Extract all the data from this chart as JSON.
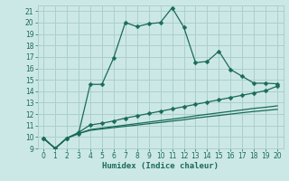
{
  "xlabel": "Humidex (Indice chaleur)",
  "bg_color": "#cce8e6",
  "grid_color": "#aacfcd",
  "line_color": "#1a6b5a",
  "xlim": [
    -0.5,
    20.5
  ],
  "ylim": [
    9,
    21.5
  ],
  "xticks": [
    0,
    1,
    2,
    3,
    4,
    5,
    6,
    7,
    8,
    9,
    10,
    11,
    12,
    13,
    14,
    15,
    16,
    17,
    18,
    19,
    20
  ],
  "yticks": [
    9,
    10,
    11,
    12,
    13,
    14,
    15,
    16,
    17,
    18,
    19,
    20,
    21
  ],
  "line1_x": [
    0,
    1,
    2,
    3,
    4,
    5,
    6,
    7,
    8,
    9,
    10,
    11,
    12,
    13,
    14,
    15,
    16,
    17,
    18,
    19,
    20
  ],
  "line1_y": [
    9.9,
    9.0,
    9.9,
    10.3,
    14.6,
    14.6,
    16.9,
    20.0,
    19.65,
    19.9,
    20.0,
    21.3,
    19.6,
    16.5,
    16.6,
    17.5,
    15.9,
    15.3,
    14.7,
    14.7,
    14.65
  ],
  "line2_x": [
    0,
    1,
    2,
    3,
    4,
    5,
    6,
    7,
    8,
    9,
    10,
    11,
    12,
    13,
    14,
    15,
    16,
    17,
    18,
    19,
    20
  ],
  "line2_y": [
    9.9,
    9.0,
    9.9,
    10.4,
    11.05,
    11.2,
    11.4,
    11.65,
    11.85,
    12.05,
    12.25,
    12.45,
    12.65,
    12.85,
    13.05,
    13.25,
    13.45,
    13.65,
    13.85,
    14.05,
    14.45
  ],
  "line3_x": [
    0,
    1,
    2,
    3,
    4,
    5,
    6,
    7,
    8,
    9,
    10,
    11,
    12,
    13,
    14,
    15,
    16,
    17,
    18,
    19,
    20
  ],
  "line3_y": [
    9.9,
    9.0,
    9.9,
    10.3,
    10.65,
    10.78,
    10.91,
    11.04,
    11.17,
    11.3,
    11.43,
    11.56,
    11.69,
    11.85,
    11.98,
    12.11,
    12.24,
    12.37,
    12.5,
    12.6,
    12.72
  ],
  "line4_x": [
    0,
    1,
    2,
    3,
    4,
    5,
    6,
    7,
    8,
    9,
    10,
    11,
    12,
    13,
    14,
    15,
    16,
    17,
    18,
    19,
    20
  ],
  "line4_y": [
    9.9,
    9.0,
    9.9,
    10.3,
    10.58,
    10.7,
    10.82,
    10.93,
    11.04,
    11.16,
    11.27,
    11.39,
    11.5,
    11.65,
    11.77,
    11.88,
    12.0,
    12.12,
    12.23,
    12.32,
    12.42
  ]
}
